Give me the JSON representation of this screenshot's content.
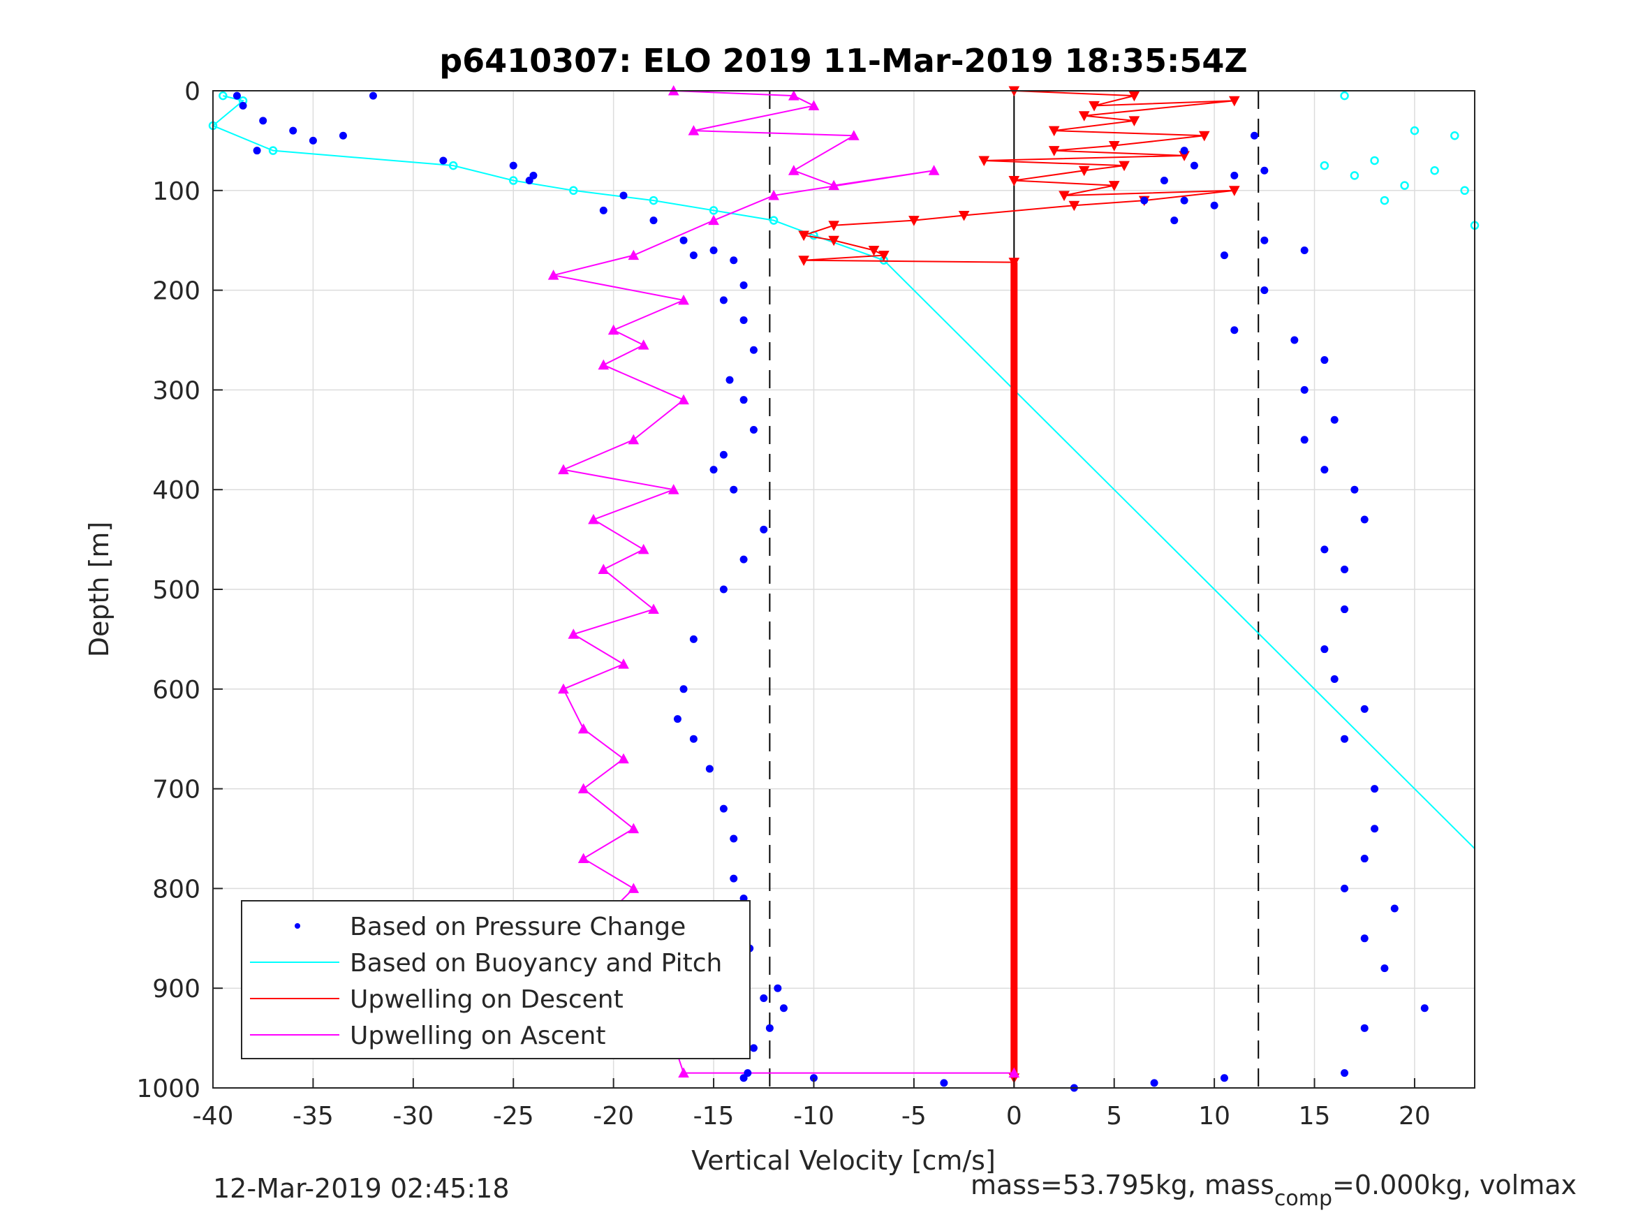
{
  "chart_data": {
    "type": "scatter",
    "title": "p6410307: ELO 2019 11-Mar-2019 18:35:54Z",
    "xlabel": "Vertical Velocity [cm/s]",
    "ylabel": "Depth [m]",
    "xlim": [
      -40,
      23
    ],
    "ylim": [
      0,
      1000
    ],
    "y_reversed": true,
    "grid": true,
    "xticks": [
      -40,
      -35,
      -30,
      -25,
      -20,
      -15,
      -10,
      -5,
      0,
      5,
      10,
      15,
      20
    ],
    "yticks": [
      0,
      100,
      200,
      300,
      400,
      500,
      600,
      700,
      800,
      900,
      1000
    ],
    "legend_position": "bottom-left",
    "colors": {
      "pressure": "#0000ff",
      "buoyancy": "#00ffff",
      "descent": "#ff0000",
      "ascent": "#ff00ff",
      "reference": "#000000"
    },
    "series": [
      {
        "name": "Based on Pressure Change",
        "role": "pressure",
        "x": [
          -38.8,
          -38.5,
          -32,
          -37.5,
          -36,
          -35,
          -33.5,
          -37.8,
          -28.5,
          -25,
          -24,
          -24.2,
          -19.5,
          -20.5,
          -18,
          -16.5,
          -15,
          -16,
          -14,
          -13.5,
          -14.5,
          -13.5,
          -13,
          -14.2,
          -13.5,
          -13,
          -14.5,
          -15,
          -14,
          -12.5,
          -13.5,
          -14.5,
          -16,
          -16.5,
          -16.8,
          -16,
          -15.2,
          -14.5,
          -14,
          -14,
          -13.5,
          -13.5,
          -13.2,
          -14,
          -13.8,
          -12.5,
          -11.8,
          -11.5,
          -12.2,
          -13,
          -13.3,
          -13.5,
          -10,
          -3.5,
          3,
          7,
          10.5,
          8.5,
          9,
          7.5,
          8.5,
          12,
          11,
          12.5,
          10,
          6.5,
          8,
          10.5,
          12.5,
          14.5,
          12.5,
          11,
          14,
          15.5,
          14.5,
          16,
          14.5,
          15.5,
          17,
          17.5,
          15.5,
          16.5,
          16.5,
          15.5,
          16,
          17.5,
          16.5,
          18,
          18,
          17.5,
          16.5,
          19,
          17.5,
          18.5,
          20.5,
          17.5,
          16.5
        ],
        "y": [
          5,
          15,
          5,
          30,
          40,
          50,
          45,
          60,
          70,
          75,
          85,
          90,
          105,
          120,
          130,
          150,
          160,
          165,
          170,
          195,
          210,
          230,
          260,
          290,
          310,
          340,
          365,
          380,
          400,
          440,
          470,
          500,
          550,
          600,
          630,
          650,
          680,
          720,
          750,
          790,
          810,
          830,
          860,
          880,
          890,
          910,
          900,
          920,
          940,
          960,
          985,
          990,
          990,
          995,
          1000,
          995,
          990,
          60,
          75,
          90,
          110,
          45,
          85,
          80,
          115,
          110,
          130,
          165,
          150,
          160,
          200,
          240,
          250,
          270,
          300,
          330,
          350,
          380,
          400,
          430,
          460,
          480,
          520,
          560,
          590,
          620,
          650,
          700,
          740,
          770,
          800,
          820,
          850,
          880,
          920,
          940,
          985
        ]
      },
      {
        "name": "Based on Buoyancy and Pitch",
        "role": "buoyancy",
        "x": [
          -39.5,
          -38.5,
          -40,
          -37,
          -28,
          -25,
          -22,
          -18,
          -15,
          -12,
          -10,
          -6.5,
          23,
          16.5,
          20,
          22,
          18,
          15.5,
          21,
          17,
          19.5,
          22.5,
          18.5,
          23
        ],
        "y": [
          5,
          10,
          35,
          60,
          75,
          90,
          100,
          110,
          120,
          130,
          145,
          170,
          760,
          5,
          40,
          45,
          70,
          75,
          80,
          85,
          95,
          100,
          110,
          135
        ]
      },
      {
        "name": "Upwelling on Descent",
        "role": "descent",
        "x": [
          0,
          6,
          4,
          11,
          3.5,
          6,
          2,
          9.5,
          5,
          2,
          8.5,
          -1.5,
          5.5,
          3.5,
          0,
          5,
          2.5,
          11,
          6.5,
          3,
          -2.5,
          -5,
          -9,
          -10.5,
          -9,
          -7,
          -6.5,
          -10.5,
          0,
          0
        ],
        "y": [
          0,
          5,
          15,
          10,
          25,
          30,
          40,
          45,
          55,
          60,
          65,
          70,
          75,
          80,
          90,
          95,
          105,
          100,
          110,
          115,
          125,
          130,
          135,
          145,
          150,
          160,
          165,
          170,
          172,
          990
        ]
      },
      {
        "name": "Upwelling on Ascent",
        "role": "ascent",
        "x": [
          -17,
          -11,
          -10,
          -16,
          -8,
          -11,
          -9,
          -4,
          -12,
          -15,
          -19,
          -23,
          -16.5,
          -20,
          -18.5,
          -20.5,
          -16.5,
          -19,
          -22.5,
          -17,
          -21,
          -18.5,
          -20.5,
          -18,
          -22,
          -19.5,
          -22.5,
          -21.5,
          -19.5,
          -21.5,
          -19,
          -21.5,
          -19,
          -20.5,
          -22,
          -18.5,
          -20.5,
          -17,
          -16.5,
          0
        ],
        "y": [
          0,
          5,
          15,
          40,
          45,
          80,
          95,
          80,
          105,
          130,
          165,
          185,
          210,
          240,
          255,
          275,
          310,
          350,
          380,
          400,
          430,
          460,
          480,
          520,
          545,
          575,
          600,
          640,
          670,
          700,
          740,
          770,
          800,
          830,
          860,
          890,
          925,
          955,
          985,
          985
        ]
      },
      {
        "name": "",
        "role": "reference",
        "description": "vertical reference lines",
        "x": [
          -12.2,
          0,
          12.2
        ],
        "y": [
          0,
          0,
          0
        ]
      }
    ],
    "footer_left": "12-Mar-2019 02:45:18",
    "footer_right_prefix": "mass=53.795kg, mass",
    "footer_right_sub": "comp",
    "footer_right_suffix": "=0.000kg, volmax"
  }
}
